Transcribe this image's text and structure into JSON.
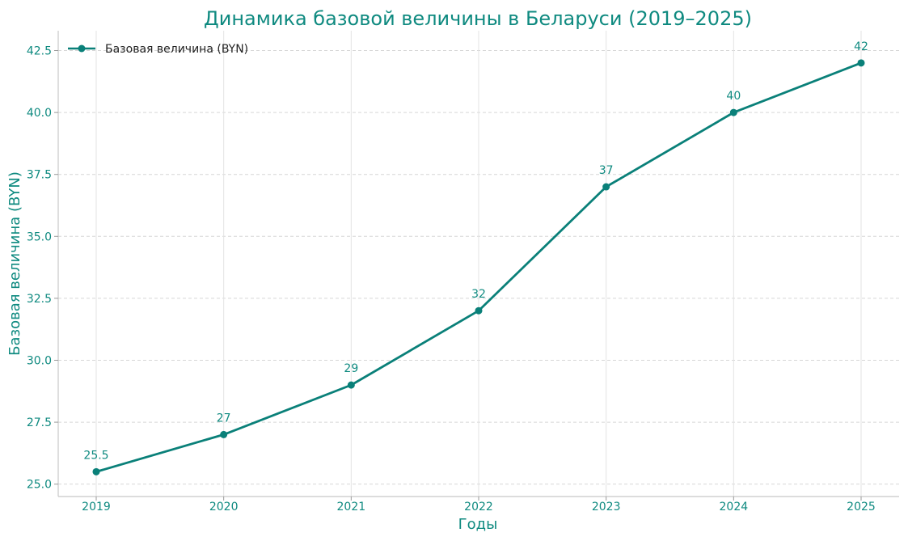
{
  "colors": {
    "accent": "#0a8079",
    "text": "#0f8a80",
    "grid": "#d6d6d6"
  },
  "chart_data": {
    "type": "line",
    "title": "Динамика базовой величины в Беларуси (2019–2025)",
    "xlabel": "Годы",
    "ylabel": "Базовая величина (BYN)",
    "x": [
      "2019",
      "2020",
      "2021",
      "2022",
      "2023",
      "2024",
      "2025"
    ],
    "x_ticks": [
      "2019",
      "2020",
      "2021",
      "2022",
      "2023",
      "2024",
      "2025"
    ],
    "y_ticks": [
      "25.0",
      "27.5",
      "30.0",
      "32.5",
      "35.0",
      "37.5",
      "40.0",
      "42.5"
    ],
    "ylim": [
      24.5,
      43.3
    ],
    "series": [
      {
        "name": "Базовая величина (BYN)",
        "values": [
          25.5,
          27,
          29,
          32,
          37,
          40,
          42
        ],
        "labels": [
          "25.5",
          "27",
          "29",
          "32",
          "37",
          "40",
          "42"
        ],
        "color": "#0a8079",
        "marker": "circle"
      }
    ],
    "grid": true,
    "legend_position": "top-left"
  }
}
